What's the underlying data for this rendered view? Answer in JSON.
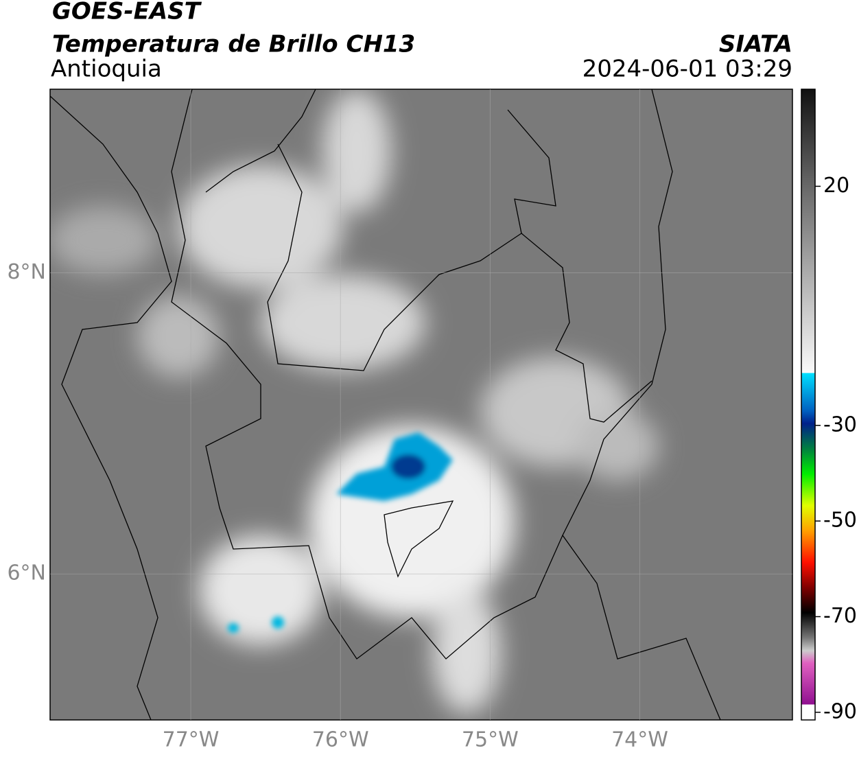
{
  "header": {
    "title": "GOES-EAST",
    "subtitle": "Temperatura de Brillo CH13",
    "region": "Antioquia",
    "source": "SIATA",
    "datetime": "2024-06-01 03:29"
  },
  "map": {
    "lonlim": [
      -77.94,
      -72.98
    ],
    "latlim": [
      5.03,
      9.22
    ],
    "lonticks": [
      {
        "value": -77,
        "label": "77°W"
      },
      {
        "value": -76,
        "label": "76°W"
      },
      {
        "value": -75,
        "label": "75°W"
      },
      {
        "value": -74,
        "label": "74°W"
      }
    ],
    "latticks": [
      {
        "value": 8,
        "label": "8°N"
      },
      {
        "value": 6,
        "label": "6°N"
      }
    ],
    "grid": true
  },
  "colorbar": {
    "lim": [
      -91.6,
      40.3
    ],
    "ticks": [
      20,
      -30,
      -50,
      -70,
      -90
    ]
  }
}
